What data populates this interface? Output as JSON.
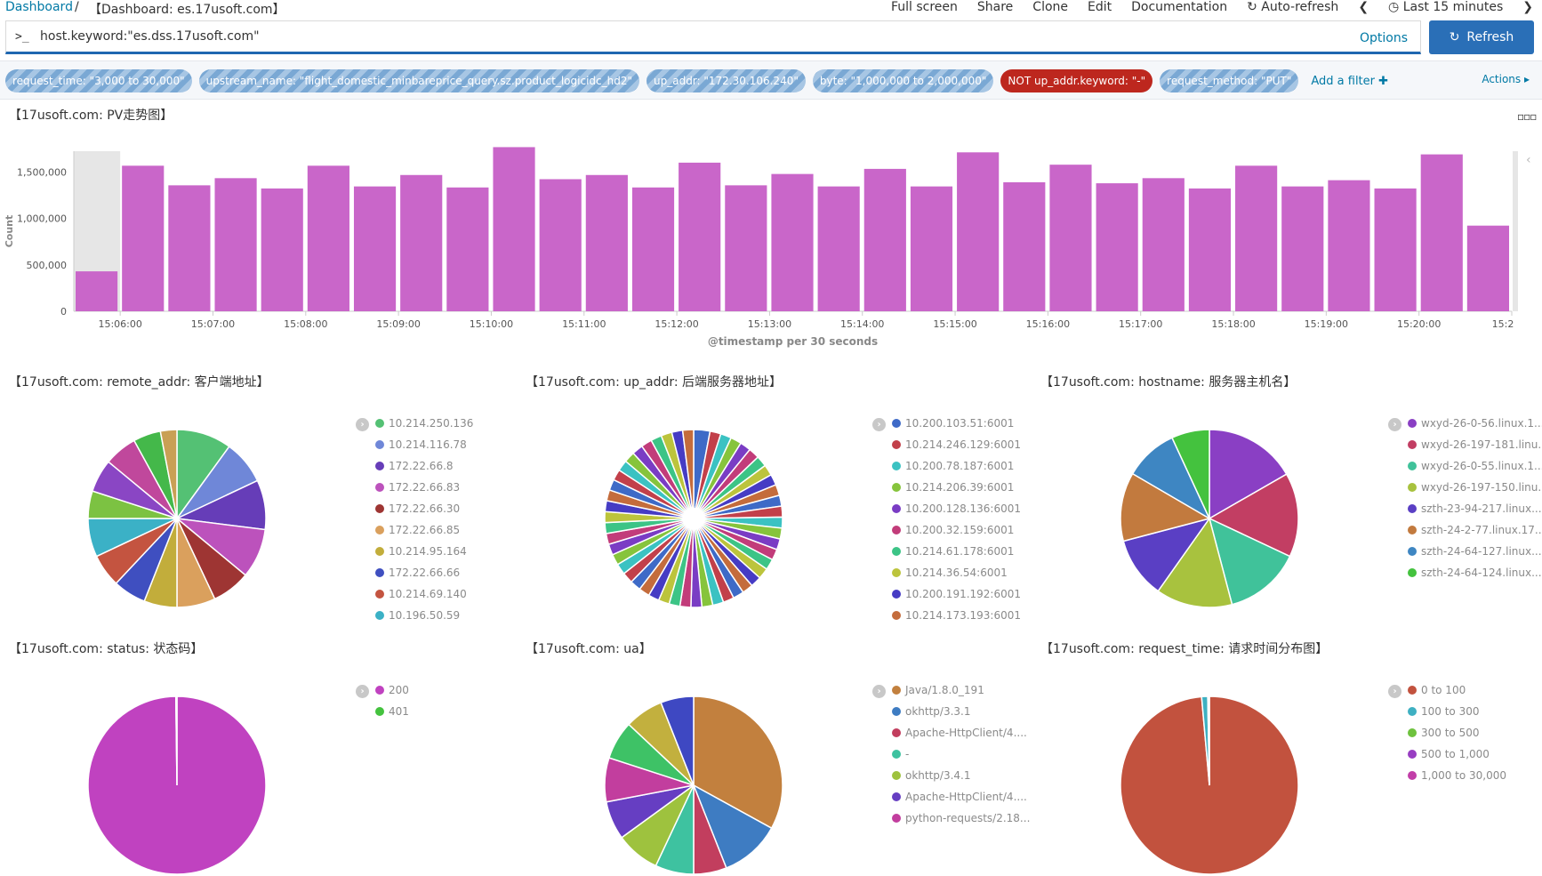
{
  "breadcrumb": {
    "root": "Dashboard",
    "separator": "/",
    "current": "【Dashboard: es.17usoft.com】"
  },
  "menu": [
    "Full screen",
    "Share",
    "Clone",
    "Edit",
    "Documentation",
    "Auto-refresh",
    "Last 15 minutes"
  ],
  "query": {
    "prompt": ">_",
    "value": "host.keyword:\"es.dss.17usoft.com\"",
    "options": "Options"
  },
  "refresh_label": "Refresh",
  "filters": [
    {
      "label": "request_time: \"3,000 to 30,000\"",
      "negated": false
    },
    {
      "label": "upstream_name: \"flight_domestic_minbareprice_query.sz.product_logicidc_hd2\"",
      "negated": false
    },
    {
      "label": "up_addr: \"172.30.106.240\"",
      "negated": false
    },
    {
      "label": "byte: \"1,000,000 to 2,000,000\"",
      "negated": false
    },
    {
      "label": "NOT up_addr.keyword: \"-\"",
      "negated": true
    },
    {
      "label": "request_method: \"PUT\"",
      "negated": false
    }
  ],
  "add_filter": "Add a filter ✚",
  "actions": "Actions ▸",
  "panels": {
    "pv": "【17usoft.com: PV走势图】",
    "remote": "【17usoft.com: remote_addr: 客户端地址】",
    "up": "【17usoft.com: up_addr: 后端服务器地址】",
    "host": "【17usoft.com: hostname: 服务器主机名】",
    "status": "【17usoft.com: status: 状态码】",
    "ua": "【17usoft.com: ua】",
    "rt": "【17usoft.com: request_time: 请求时间分布图】"
  },
  "colors": {
    "bar": "#c966c9",
    "accent": "#2a6fb7",
    "negated": "#bd271e"
  },
  "chart_data": [
    {
      "type": "bar",
      "title": "",
      "xlabel": "@timestamp per 30 seconds",
      "ylabel": "Count",
      "ylim": [
        0,
        1800000
      ],
      "yticks": [
        0,
        500000,
        1000000,
        1500000
      ],
      "ytick_labels": [
        "0",
        "500,000",
        "1,000,000",
        "1,500,000"
      ],
      "xtick_labels": [
        "15:06:00",
        "15:07:00",
        "15:08:00",
        "15:09:00",
        "15:10:00",
        "15:11:00",
        "15:12:00",
        "15:13:00",
        "15:14:00",
        "15:15:00",
        "15:16:00",
        "15:17:00",
        "15:18:00",
        "15:19:00",
        "15:20:00",
        "15:2"
      ],
      "values": [
        430000,
        1567000,
        1356000,
        1433000,
        1322000,
        1567000,
        1344000,
        1467000,
        1333000,
        1767000,
        1422000,
        1467000,
        1333000,
        1600000,
        1356000,
        1478000,
        1344000,
        1533000,
        1344000,
        1711000,
        1389000,
        1578000,
        1378000,
        1433000,
        1322000,
        1567000,
        1344000,
        1411000,
        1322000,
        1689000,
        922000
      ]
    },
    {
      "type": "pie",
      "key": "remote",
      "legend": [
        "10.214.250.136",
        "10.214.116.78",
        "172.22.66.8",
        "172.22.66.83",
        "172.22.66.30",
        "172.22.66.85",
        "10.214.95.164",
        "172.22.66.66",
        "10.214.69.140",
        "10.196.50.59"
      ],
      "values": [
        10,
        8,
        9,
        9,
        7,
        7,
        6,
        6,
        6,
        7,
        5,
        6,
        6,
        5,
        3
      ],
      "colors": [
        "#54c174",
        "#6f87d8",
        "#663db8",
        "#bc52bc",
        "#9e3533",
        "#daa05d",
        "#c2ad3b",
        "#3f4fc0",
        "#c45440",
        "#3bb1c6",
        "#7cc242",
        "#8a46c4",
        "#c0489c",
        "#44b84a",
        "#c9a055"
      ]
    },
    {
      "type": "pie",
      "key": "up",
      "donut": true,
      "legend": [
        "10.200.103.51:6001",
        "10.214.246.129:6001",
        "10.200.78.187:6001",
        "10.214.206.39:6001",
        "10.200.128.136:6001",
        "10.200.32.159:6001",
        "10.214.61.178:6001",
        "10.214.36.54:6001",
        "10.200.191.192:6001",
        "10.214.173.193:6001"
      ],
      "values": [
        3,
        2,
        2,
        2,
        2,
        2,
        2,
        2,
        2,
        2,
        2,
        2,
        2,
        2,
        2,
        2,
        2,
        2,
        2,
        2,
        2,
        2,
        2,
        2,
        2,
        2,
        2,
        2,
        2,
        2,
        2,
        2,
        2,
        2,
        2,
        2,
        2,
        2,
        2,
        2,
        2,
        2,
        2,
        2,
        2,
        2,
        2,
        2,
        2,
        2
      ],
      "colors": [
        "#3e6ac7",
        "#c2404a",
        "#3bc2c2",
        "#86c43c",
        "#7a3cc4",
        "#c23c7a",
        "#3cc486",
        "#bcc43c",
        "#463cc4",
        "#c46c3c"
      ]
    },
    {
      "type": "pie",
      "key": "host",
      "legend": [
        "wxyd-26-0-56.linux.1...",
        "wxyd-26-197-181.linu...",
        "wxyd-26-0-55.linux.1...",
        "wxyd-26-197-150.linu...",
        "szth-23-94-217.linux....",
        "szth-24-2-77.linux.17...",
        "szth-24-64-127.linux....",
        "szth-24-64-124.linux...."
      ],
      "values": [
        16.7,
        15.3,
        13.9,
        13.9,
        11.1,
        12.5,
        9.7,
        6.9
      ],
      "colors": [
        "#8a3fc4",
        "#c23e63",
        "#40c29a",
        "#a8c23e",
        "#5a3fc4",
        "#c27a3e",
        "#3e86c2",
        "#44c23e"
      ]
    },
    {
      "type": "pie",
      "key": "status",
      "legend": [
        "200",
        "401"
      ],
      "values": [
        99.8,
        0.2
      ],
      "colors": [
        "#c042c0",
        "#44c23e"
      ]
    },
    {
      "type": "pie",
      "key": "ua",
      "legend": [
        "Java/1.8.0_191",
        "okhttp/3.3.1",
        "Apache-HttpClient/4....",
        "-",
        "okhttp/3.4.1",
        "Apache-HttpClient/4....",
        "python-requests/2.18..."
      ],
      "values": [
        33,
        11,
        6,
        7,
        8,
        7,
        8,
        7,
        7,
        6
      ],
      "colors": [
        "#c2803e",
        "#3e7cc2",
        "#c23e5e",
        "#3ec2a0",
        "#9ec23e",
        "#663ec2",
        "#c23e9e",
        "#3ec266",
        "#c2b03e",
        "#3e48c2"
      ]
    },
    {
      "type": "pie",
      "key": "rt",
      "legend": [
        "0 to 100",
        "100 to 300",
        "300 to 500",
        "500 to 1,000",
        "1,000 to 30,000"
      ],
      "values": [
        98.6,
        1.1,
        0.1,
        0.1,
        0.1
      ],
      "colors": [
        "#c2523e",
        "#3eb0c2",
        "#6ec23e",
        "#983ec2",
        "#c23ea8"
      ]
    }
  ]
}
